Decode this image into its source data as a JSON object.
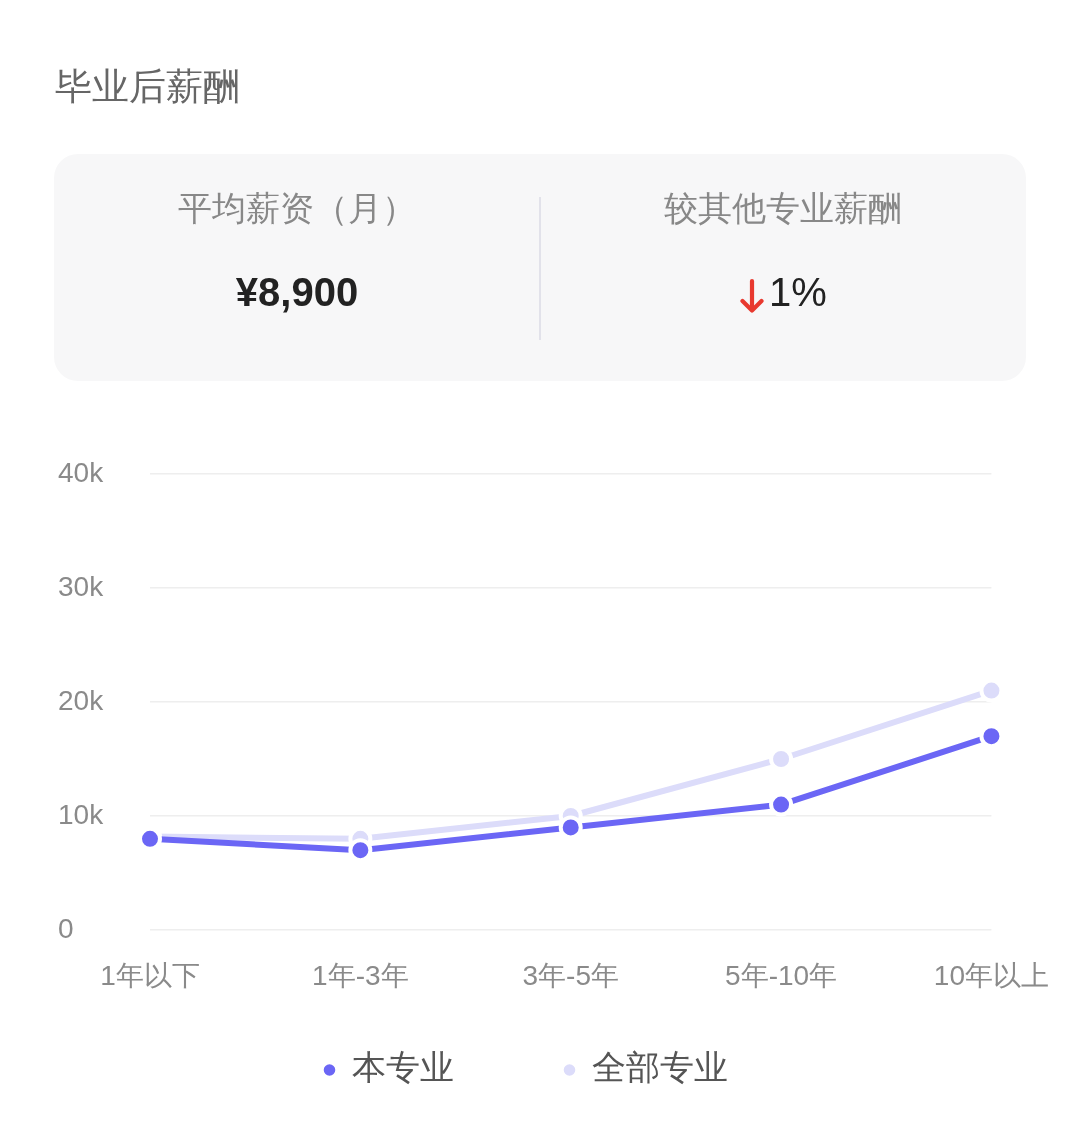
{
  "chart_data": [
    {
      "type": "other",
      "title": "毕业后薪酬",
      "annotations": [
        "平均薪资（月）",
        "¥8,900",
        "较其他专业薪酬",
        "1%"
      ]
    },
    {
      "type": "line",
      "categories": [
        "1年以下",
        "1年-3年",
        "3年-5年",
        "5年-10年",
        "10年以上"
      ],
      "series": [
        {
          "name": "本专业",
          "color": "#6b66f5",
          "values": [
            8000,
            7000,
            9000,
            11000,
            17000
          ]
        },
        {
          "name": "全部专业",
          "color": "#dcdcfa",
          "values": [
            8200,
            8000,
            10000,
            15000,
            21000
          ]
        }
      ],
      "ylim": [
        0,
        40000
      ],
      "yticks": [
        {
          "value": 0,
          "label": "0"
        },
        {
          "value": 10000,
          "label": "10k"
        },
        {
          "value": 20000,
          "label": "20k"
        },
        {
          "value": 30000,
          "label": "30k"
        },
        {
          "value": 40000,
          "label": "40k"
        }
      ],
      "grid": "y",
      "legend": "bottom",
      "marker": "circle"
    }
  ]
}
